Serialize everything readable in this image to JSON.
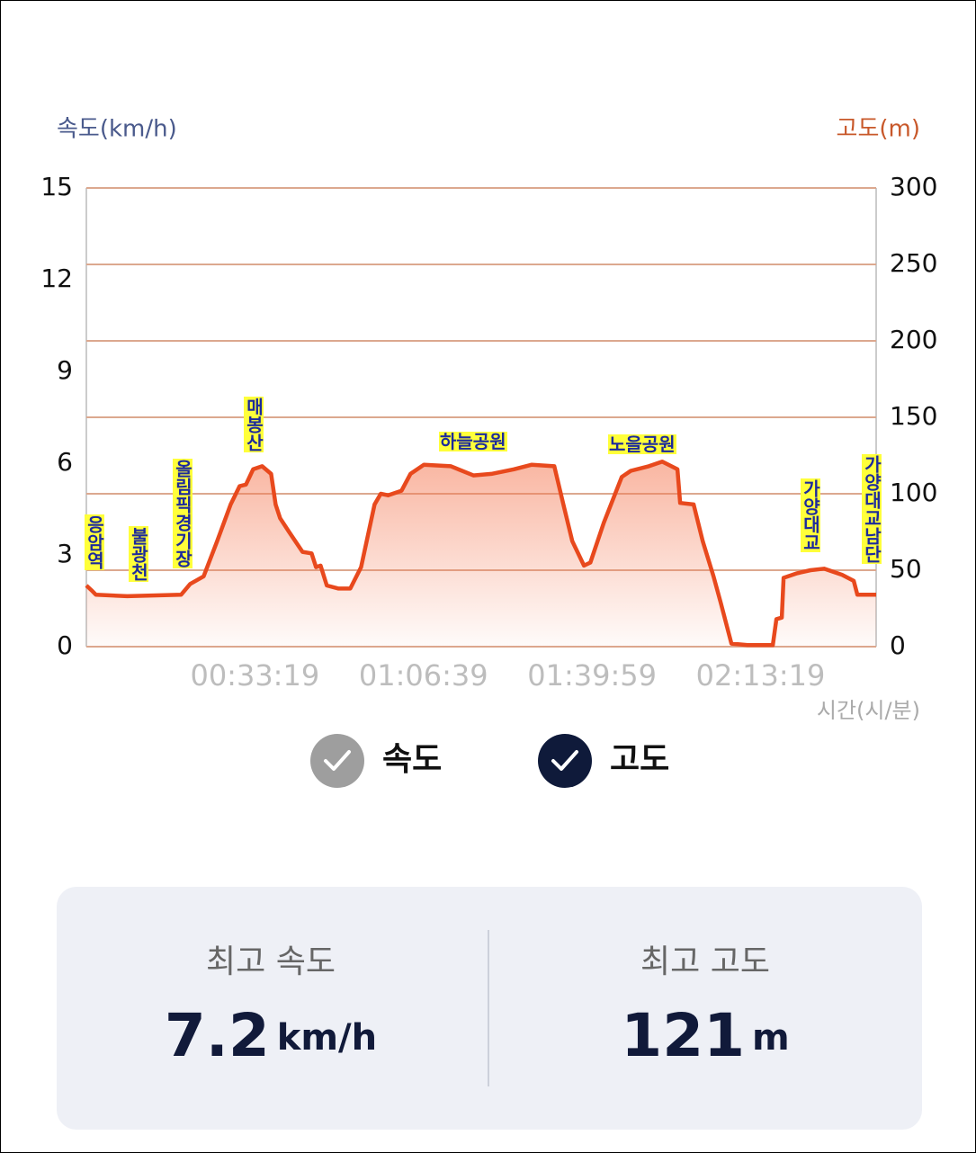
{
  "chart_data": {
    "type": "area",
    "y_title": "속도(km/h)",
    "y2_title": "고도(m)",
    "x_title": "시간(시/분)",
    "xlim": [
      0,
      9370
    ],
    "xticks": [
      {
        "value": 1999,
        "label": "00:33:19"
      },
      {
        "value": 3999,
        "label": "01:06:39"
      },
      {
        "value": 5999,
        "label": "01:39:59"
      },
      {
        "value": 7999,
        "label": "02:13:19"
      }
    ],
    "ylim": [
      0,
      15
    ],
    "yticks": [
      0,
      3,
      6,
      9,
      12,
      15
    ],
    "y2lim": [
      0,
      300
    ],
    "y2ticks": [
      0,
      50,
      100,
      150,
      200,
      250,
      300
    ],
    "grid": "y2",
    "x": [
      0,
      59,
      112,
      485,
      1125,
      1232,
      1392,
      1552,
      1712,
      1819,
      1893,
      1979,
      2085,
      2192,
      2245,
      2299,
      2405,
      2565,
      2672,
      2725,
      2779,
      2853,
      2992,
      3131,
      3259,
      3419,
      3493,
      3579,
      3739,
      3845,
      4005,
      4325,
      4592,
      4805,
      5072,
      5285,
      5552,
      5659,
      5765,
      5904,
      5979,
      6139,
      6352,
      6459,
      6672,
      6832,
      7013,
      7045,
      7205,
      7312,
      7440,
      7525,
      7653,
      7845,
      8144,
      8187,
      8251,
      8272,
      8432,
      8592,
      8752,
      8965,
      9104,
      9147,
      9370
    ],
    "series": [
      {
        "name": "속도",
        "axis": "y",
        "visible": false,
        "color": "#9e9e9e"
      },
      {
        "name": "고도",
        "axis": "y2",
        "visible": true,
        "color": "#e8491d",
        "values": [
          40,
          37,
          34,
          33,
          34,
          41,
          46,
          69,
          93,
          105,
          106,
          116,
          118,
          113,
          93,
          84,
          75,
          62,
          61,
          52,
          53,
          40,
          38,
          38,
          52,
          93,
          100,
          99,
          102,
          113,
          119,
          118,
          112,
          113,
          116,
          119,
          118,
          93,
          69,
          53,
          55,
          81,
          111,
          115,
          118,
          121,
          116,
          94,
          93,
          69,
          46,
          29,
          2,
          1,
          1,
          18,
          19,
          45,
          48,
          50,
          51,
          47,
          43,
          34,
          34
        ]
      }
    ],
    "annotations": [
      "응암역",
      "불광천",
      "올림픽경기장",
      "매봉산",
      "하늘공원",
      "노을공원",
      "가양대교",
      "가양대교남단"
    ]
  },
  "summary": [
    {
      "label": "최고 속도",
      "value": 7.2,
      "unit": "km/h"
    },
    {
      "label": "최고 고도",
      "value": 121,
      "unit": "m"
    }
  ]
}
